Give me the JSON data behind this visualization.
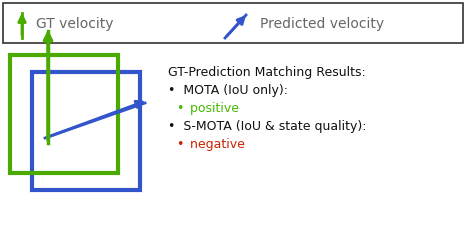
{
  "bg_color": "#ffffff",
  "legend_box_color": "#333333",
  "gt_arrow_color": "#4aaa00",
  "pred_arrow_color": "#3355cc",
  "gt_box_color": "#4aaa00",
  "pred_box_color": "#3355cc",
  "text_color": "#666666",
  "positive_color": "#44bb00",
  "negative_color": "#cc2200",
  "gt_label": "GT velocity",
  "pred_label": "Predicted velocity",
  "title_text": "GT-Prediction Matching Results:",
  "line1": "MOTA (IoU only):",
  "line2": "positive",
  "line3": "S-MOTA (IoU & state quality):",
  "line4": "negative",
  "figw": 4.66,
  "figh": 2.48,
  "dpi": 100
}
